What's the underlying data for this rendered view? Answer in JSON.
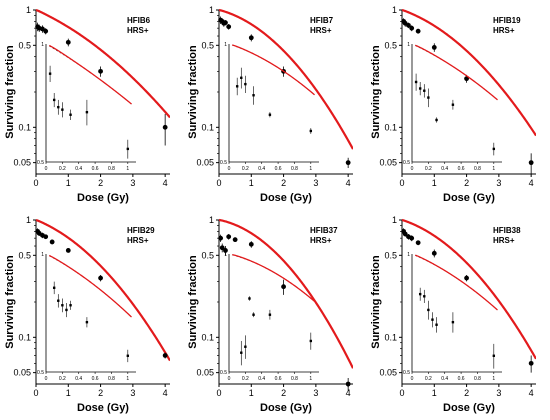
{
  "figure": {
    "ylabel": "Surviving fraction",
    "xlabel": "Dose (Gy)"
  },
  "chart_data": [
    {
      "type": "scatter",
      "title": "HFIB6",
      "subtitle": "HRS+",
      "xlabel": "Dose (Gy)",
      "ylabel": "Surviving fraction",
      "xlim": [
        0,
        4.15
      ],
      "ylim": [
        0.04,
        1
      ],
      "yscale": "log",
      "xticks": [
        "0",
        "1",
        "2",
        "3",
        "4"
      ],
      "yticks": [
        "1",
        "0.5",
        "0.1",
        "0.05"
      ],
      "points": [
        {
          "x": 0.05,
          "y": 0.72,
          "err": 0.06
        },
        {
          "x": 0.1,
          "y": 0.7,
          "err": 0.05
        },
        {
          "x": 0.2,
          "y": 0.69,
          "err": 0.05
        },
        {
          "x": 0.3,
          "y": 0.66,
          "err": 0.04
        },
        {
          "x": 1.0,
          "y": 0.53,
          "err": 0.04
        },
        {
          "x": 2.0,
          "y": 0.3,
          "err": 0.03
        },
        {
          "x": 4.0,
          "y": 0.1,
          "err": 0.03
        }
      ],
      "lq_curve": {
        "alpha": 0.28,
        "beta": 0.055
      },
      "hrs_curve": {
        "s": 0.66,
        "r": 9,
        "alpha": 0.28,
        "beta": 0.055
      },
      "inset": {
        "xlim": [
          0,
          1.1
        ],
        "ylim": [
          0.5,
          1
        ],
        "xticks": [
          "0",
          "0.2",
          "0.4",
          "0.6",
          "0.8",
          "1"
        ],
        "yticks": [
          "1",
          "0.5"
        ],
        "points": [
          {
            "x": 0.05,
            "y": 0.84,
            "err": 0.04
          },
          {
            "x": 0.1,
            "y": 0.72,
            "err": 0.03
          },
          {
            "x": 0.15,
            "y": 0.69,
            "err": 0.03
          },
          {
            "x": 0.2,
            "y": 0.68,
            "err": 0.03
          },
          {
            "x": 0.3,
            "y": 0.66,
            "err": 0.02
          },
          {
            "x": 0.5,
            "y": 0.67,
            "err": 0.05
          },
          {
            "x": 1.0,
            "y": 0.54,
            "err": 0.03
          }
        ]
      }
    },
    {
      "type": "scatter",
      "title": "HFIB7",
      "subtitle": "HRS+",
      "xlabel": "Dose (Gy)",
      "ylabel": "Surviving fraction",
      "xlim": [
        0,
        4.15
      ],
      "ylim": [
        0.04,
        1
      ],
      "yscale": "log",
      "xticks": [
        "0",
        "1",
        "2",
        "3",
        "4"
      ],
      "yticks": [
        "1",
        "0.5",
        "0.1",
        "0.05"
      ],
      "points": [
        {
          "x": 0.05,
          "y": 0.82,
          "err": 0.06
        },
        {
          "x": 0.1,
          "y": 0.8,
          "err": 0.05
        },
        {
          "x": 0.15,
          "y": 0.77,
          "err": 0.05
        },
        {
          "x": 0.2,
          "y": 0.78,
          "err": 0.04
        },
        {
          "x": 0.3,
          "y": 0.72,
          "err": 0.04
        },
        {
          "x": 1.0,
          "y": 0.58,
          "err": 0.04
        },
        {
          "x": 2.0,
          "y": 0.3,
          "err": 0.03
        },
        {
          "x": 4.0,
          "y": 0.05,
          "err": 0.005
        }
      ],
      "lq_curve": {
        "alpha": 0.16,
        "beta": 0.12
      },
      "hrs_curve": {
        "s": 0.75,
        "r": 9,
        "alpha": 0.16,
        "beta": 0.12
      },
      "inset": {
        "xlim": [
          0,
          1.1
        ],
        "ylim": [
          0.5,
          1
        ],
        "xticks": [
          "0",
          "0.2",
          "0.4",
          "0.6",
          "0.8",
          "1"
        ],
        "yticks": [
          "1",
          "0.5"
        ],
        "points": [
          {
            "x": 0.1,
            "y": 0.78,
            "err": 0.04
          },
          {
            "x": 0.15,
            "y": 0.82,
            "err": 0.05
          },
          {
            "x": 0.2,
            "y": 0.79,
            "err": 0.04
          },
          {
            "x": 0.3,
            "y": 0.74,
            "err": 0.04
          },
          {
            "x": 0.5,
            "y": 0.66,
            "err": 0.01
          },
          {
            "x": 1.0,
            "y": 0.6,
            "err": 0.01
          }
        ]
      }
    },
    {
      "type": "scatter",
      "title": "HFIB19",
      "subtitle": "HRS+",
      "xlabel": "Dose (Gy)",
      "ylabel": "Surviving fraction",
      "xlim": [
        0,
        4.15
      ],
      "ylim": [
        0.04,
        1
      ],
      "yscale": "log",
      "xticks": [
        "0",
        "1",
        "2",
        "3",
        "4"
      ],
      "yticks": [
        "1",
        "0.5",
        "0.1",
        "0.05"
      ],
      "points": [
        {
          "x": 0.05,
          "y": 0.8,
          "err": 0.05
        },
        {
          "x": 0.1,
          "y": 0.77,
          "err": 0.05
        },
        {
          "x": 0.2,
          "y": 0.74,
          "err": 0.04
        },
        {
          "x": 0.3,
          "y": 0.7,
          "err": 0.04
        },
        {
          "x": 0.5,
          "y": 0.66,
          "err": 0.03
        },
        {
          "x": 1.0,
          "y": 0.48,
          "err": 0.04
        },
        {
          "x": 2.0,
          "y": 0.26,
          "err": 0.02
        },
        {
          "x": 4.0,
          "y": 0.05,
          "err": 0.01
        }
      ],
      "lq_curve": {
        "alpha": 0.22,
        "beta": 0.09
      },
      "hrs_curve": {
        "s": 0.72,
        "r": 9,
        "alpha": 0.22,
        "beta": 0.09
      },
      "inset": {
        "xlim": [
          0,
          1.1
        ],
        "ylim": [
          0.5,
          1
        ],
        "xticks": [
          "0",
          "0.2",
          "0.4",
          "0.6",
          "0.8",
          "1"
        ],
        "yticks": [
          "1",
          "0.5"
        ],
        "points": [
          {
            "x": 0.05,
            "y": 0.8,
            "err": 0.04
          },
          {
            "x": 0.1,
            "y": 0.77,
            "err": 0.03
          },
          {
            "x": 0.15,
            "y": 0.76,
            "err": 0.03
          },
          {
            "x": 0.2,
            "y": 0.73,
            "err": 0.04
          },
          {
            "x": 0.3,
            "y": 0.64,
            "err": 0.01
          },
          {
            "x": 0.5,
            "y": 0.7,
            "err": 0.02
          },
          {
            "x": 1.0,
            "y": 0.54,
            "err": 0.02
          }
        ]
      }
    },
    {
      "type": "scatter",
      "title": "HFIB29",
      "subtitle": "HRS+",
      "xlabel": "Dose (Gy)",
      "ylabel": "Surviving fraction",
      "xlim": [
        0,
        4.15
      ],
      "ylim": [
        0.04,
        1
      ],
      "yscale": "log",
      "xticks": [
        "0",
        "1",
        "2",
        "3",
        "4"
      ],
      "yticks": [
        "1",
        "0.5",
        "0.1",
        "0.05"
      ],
      "points": [
        {
          "x": 0.05,
          "y": 0.8,
          "err": 0.05
        },
        {
          "x": 0.1,
          "y": 0.77,
          "err": 0.04
        },
        {
          "x": 0.2,
          "y": 0.74,
          "err": 0.04
        },
        {
          "x": 0.3,
          "y": 0.72,
          "err": 0.03
        },
        {
          "x": 0.5,
          "y": 0.65,
          "err": 0.03
        },
        {
          "x": 1.0,
          "y": 0.55,
          "err": 0.02
        },
        {
          "x": 2.0,
          "y": 0.32,
          "err": 0.02
        },
        {
          "x": 4.0,
          "y": 0.07,
          "err": 0.004
        }
      ],
      "lq_curve": {
        "alpha": 0.25,
        "beta": 0.1
      },
      "hrs_curve": {
        "s": 0.8,
        "r": 9,
        "alpha": 0.25,
        "beta": 0.1
      },
      "inset": {
        "xlim": [
          0,
          1.1
        ],
        "ylim": [
          0.5,
          1
        ],
        "xticks": [
          "0",
          "0.2",
          "0.4",
          "0.6",
          "0.8",
          "1"
        ],
        "yticks": [
          "1",
          "0.5"
        ],
        "points": [
          {
            "x": 0.1,
            "y": 0.82,
            "err": 0.03
          },
          {
            "x": 0.15,
            "y": 0.76,
            "err": 0.03
          },
          {
            "x": 0.2,
            "y": 0.74,
            "err": 0.03
          },
          {
            "x": 0.25,
            "y": 0.72,
            "err": 0.03
          },
          {
            "x": 0.3,
            "y": 0.74,
            "err": 0.02
          },
          {
            "x": 0.5,
            "y": 0.67,
            "err": 0.02
          },
          {
            "x": 1.0,
            "y": 0.55,
            "err": 0.02
          }
        ]
      }
    },
    {
      "type": "scatter",
      "title": "HFIB37",
      "subtitle": "HRS+",
      "xlabel": "Dose (Gy)",
      "ylabel": "Surviving fraction",
      "xlim": [
        0,
        4.15
      ],
      "ylim": [
        0.04,
        1
      ],
      "yscale": "log",
      "xticks": [
        "0",
        "1",
        "2",
        "3",
        "4"
      ],
      "yticks": [
        "1",
        "0.5",
        "0.1",
        "0.05"
      ],
      "points": [
        {
          "x": 0.05,
          "y": 0.7,
          "err": 0.05
        },
        {
          "x": 0.1,
          "y": 0.58,
          "err": 0.05
        },
        {
          "x": 0.2,
          "y": 0.55,
          "err": 0.05
        },
        {
          "x": 0.3,
          "y": 0.72,
          "err": 0.04
        },
        {
          "x": 0.5,
          "y": 0.68,
          "err": 0.03
        },
        {
          "x": 1.0,
          "y": 0.62,
          "err": 0.04
        },
        {
          "x": 2.0,
          "y": 0.27,
          "err": 0.04
        },
        {
          "x": 4.0,
          "y": 0.04,
          "err": 0.005
        }
      ],
      "lq_curve": {
        "alpha": 0.12,
        "beta": 0.14
      },
      "hrs_curve": {
        "s": 0.58,
        "r": 9,
        "alpha": 0.12,
        "beta": 0.14
      },
      "inset": {
        "xlim": [
          0,
          1.1
        ],
        "ylim": [
          0.5,
          1
        ],
        "xticks": [
          "0",
          "0.2",
          "0.4",
          "0.6",
          "0.8",
          "1"
        ],
        "yticks": [
          "1",
          "0.5"
        ],
        "points": [
          {
            "x": 0.15,
            "y": 0.56,
            "err": 0.04
          },
          {
            "x": 0.2,
            "y": 0.58,
            "err": 0.04
          },
          {
            "x": 0.25,
            "y": 0.77,
            "err": 0.01
          },
          {
            "x": 0.3,
            "y": 0.7,
            "err": 0.01
          },
          {
            "x": 0.5,
            "y": 0.7,
            "err": 0.02
          },
          {
            "x": 1.0,
            "y": 0.6,
            "err": 0.03
          }
        ]
      }
    },
    {
      "type": "scatter",
      "title": "HFIB38",
      "subtitle": "HRS+",
      "xlabel": "Dose (Gy)",
      "ylabel": "Surviving fraction",
      "xlim": [
        0,
        4.15
      ],
      "ylim": [
        0.04,
        1
      ],
      "yscale": "log",
      "xticks": [
        "0",
        "1",
        "2",
        "3",
        "4"
      ],
      "yticks": [
        "1",
        "0.5",
        "0.1",
        "0.05"
      ],
      "points": [
        {
          "x": 0.05,
          "y": 0.8,
          "err": 0.05
        },
        {
          "x": 0.1,
          "y": 0.76,
          "err": 0.04
        },
        {
          "x": 0.2,
          "y": 0.72,
          "err": 0.04
        },
        {
          "x": 0.3,
          "y": 0.7,
          "err": 0.04
        },
        {
          "x": 0.5,
          "y": 0.64,
          "err": 0.03
        },
        {
          "x": 1.0,
          "y": 0.52,
          "err": 0.04
        },
        {
          "x": 2.0,
          "y": 0.32,
          "err": 0.02
        },
        {
          "x": 4.0,
          "y": 0.06,
          "err": 0.01
        }
      ],
      "lq_curve": {
        "alpha": 0.2,
        "beta": 0.11
      },
      "hrs_curve": {
        "s": 0.72,
        "r": 9,
        "alpha": 0.2,
        "beta": 0.11
      },
      "inset": {
        "xlim": [
          0,
          1.1
        ],
        "ylim": [
          0.5,
          1
        ],
        "xticks": [
          "0",
          "0.2",
          "0.4",
          "0.6",
          "0.8",
          "1"
        ],
        "yticks": [
          "1",
          "0.5"
        ],
        "points": [
          {
            "x": 0.1,
            "y": 0.79,
            "err": 0.03
          },
          {
            "x": 0.15,
            "y": 0.78,
            "err": 0.03
          },
          {
            "x": 0.2,
            "y": 0.72,
            "err": 0.04
          },
          {
            "x": 0.25,
            "y": 0.68,
            "err": 0.03
          },
          {
            "x": 0.3,
            "y": 0.66,
            "err": 0.03
          },
          {
            "x": 0.5,
            "y": 0.67,
            "err": 0.04
          },
          {
            "x": 1.0,
            "y": 0.55,
            "err": 0.04
          }
        ]
      }
    }
  ]
}
